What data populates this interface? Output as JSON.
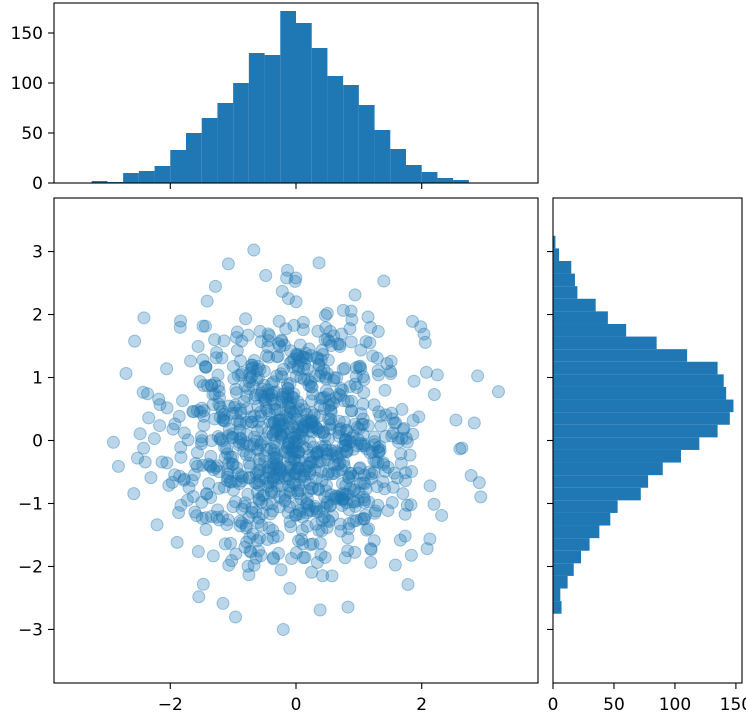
{
  "colors": {
    "accent": "#1f77b4",
    "frame": "#000000",
    "background": "#ffffff"
  },
  "chart_data": [
    {
      "panel": "top-histogram",
      "type": "bar",
      "orientation": "vertical",
      "x_bin_range": [
        -3.5,
        3.5
      ],
      "bin_count": 28,
      "values": [
        0,
        2,
        1,
        10,
        12,
        17,
        33,
        50,
        65,
        80,
        100,
        130,
        128,
        172,
        160,
        135,
        107,
        98,
        78,
        53,
        34,
        18,
        11,
        5,
        3,
        0,
        0,
        0
      ],
      "xlim": [
        -3.85,
        3.85
      ],
      "ylim": [
        0,
        180
      ],
      "xticks": [
        -2,
        0,
        2
      ],
      "yticks": [
        0,
        50,
        100,
        150
      ],
      "ytick_labels": [
        "0",
        "50",
        "100",
        "150"
      ],
      "xlabel": "",
      "ylabel": ""
    },
    {
      "panel": "scatter",
      "type": "scatter",
      "n_points": 1000,
      "distribution": "bivariate standard normal (illustrative sample)",
      "marker_alpha": 0.3,
      "xlim": [
        -3.85,
        3.85
      ],
      "ylim": [
        -3.85,
        3.85
      ],
      "xticks": [
        -2,
        0,
        2
      ],
      "xtick_labels": [
        "−2",
        "0",
        "2"
      ],
      "yticks": [
        3,
        2,
        1,
        0,
        -1,
        -2,
        -3
      ],
      "ytick_labels": [
        "3",
        "2",
        "1",
        "0",
        "−1",
        "−2",
        "−3"
      ],
      "xlabel": "",
      "ylabel": ""
    },
    {
      "panel": "right-histogram",
      "type": "bar",
      "orientation": "horizontal",
      "y_bin_range": [
        -2.75,
        3.25
      ],
      "bin_count": 30,
      "values": [
        7,
        6,
        12,
        17,
        23,
        30,
        38,
        47,
        53,
        72,
        78,
        90,
        105,
        120,
        135,
        145,
        148,
        142,
        140,
        135,
        110,
        85,
        60,
        45,
        35,
        20,
        18,
        15,
        5,
        2
      ],
      "xlim": [
        0,
        155
      ],
      "ylim": [
        -3.85,
        3.85
      ],
      "xticks": [
        0,
        50,
        100,
        150
      ],
      "xtick_labels": [
        "0",
        "50",
        "100",
        "150"
      ],
      "xlabel": "",
      "ylabel": ""
    }
  ]
}
